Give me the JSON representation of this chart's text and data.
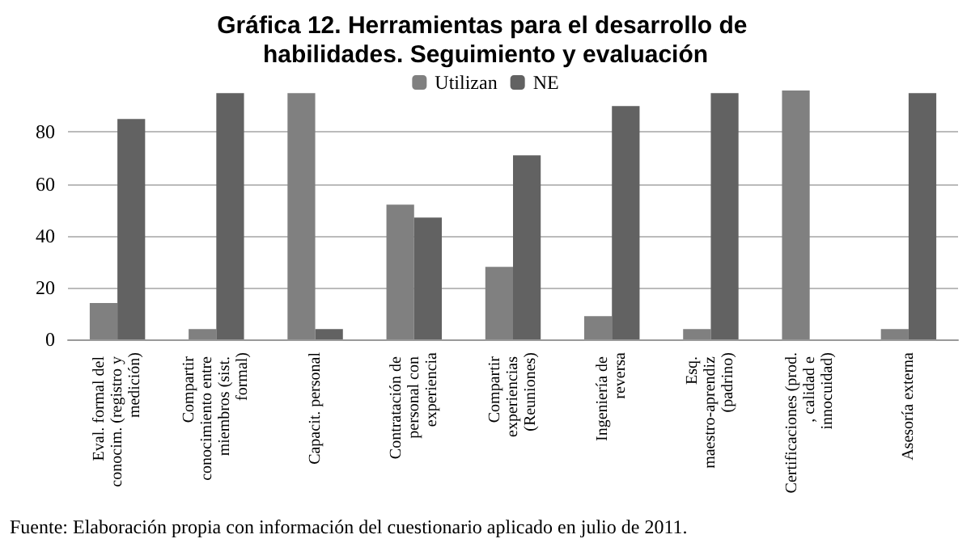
{
  "chart_data": {
    "type": "bar",
    "title": "Gráfica 12. Herramientas para el desarrollo de habilidades. Seguimiento y evaluación",
    "categories": [
      "Eval. formal del conocim. (registro y medición)",
      "Compartir conocimiento entre miembros (sist. formal)",
      "Capacit. personal",
      "Contratación de personal con experiencia",
      "Compartir experiencias (Reuniones)",
      "Ingeniería de reversa",
      "Esq. maestro-aprendiz (padrino)",
      "Certificaciones (prod., calidad e innocuidad)",
      "Asesoría externa"
    ],
    "series": [
      {
        "name": "Utilizan",
        "color": "#808080",
        "values": [
          14,
          4,
          95,
          52,
          28,
          9,
          4,
          96,
          4
        ]
      },
      {
        "name": "NE",
        "color": "#626262",
        "values": [
          85,
          95,
          4,
          47,
          71,
          90,
          95,
          null,
          95
        ]
      }
    ],
    "ylim": [
      0,
      96
    ],
    "yticks": [
      0,
      20,
      40,
      60,
      80
    ],
    "grid": "y",
    "legend": "top",
    "annotations": [
      "Fuente: Elaboración propia con información del cuestionario aplicado en julio de 2011."
    ]
  }
}
